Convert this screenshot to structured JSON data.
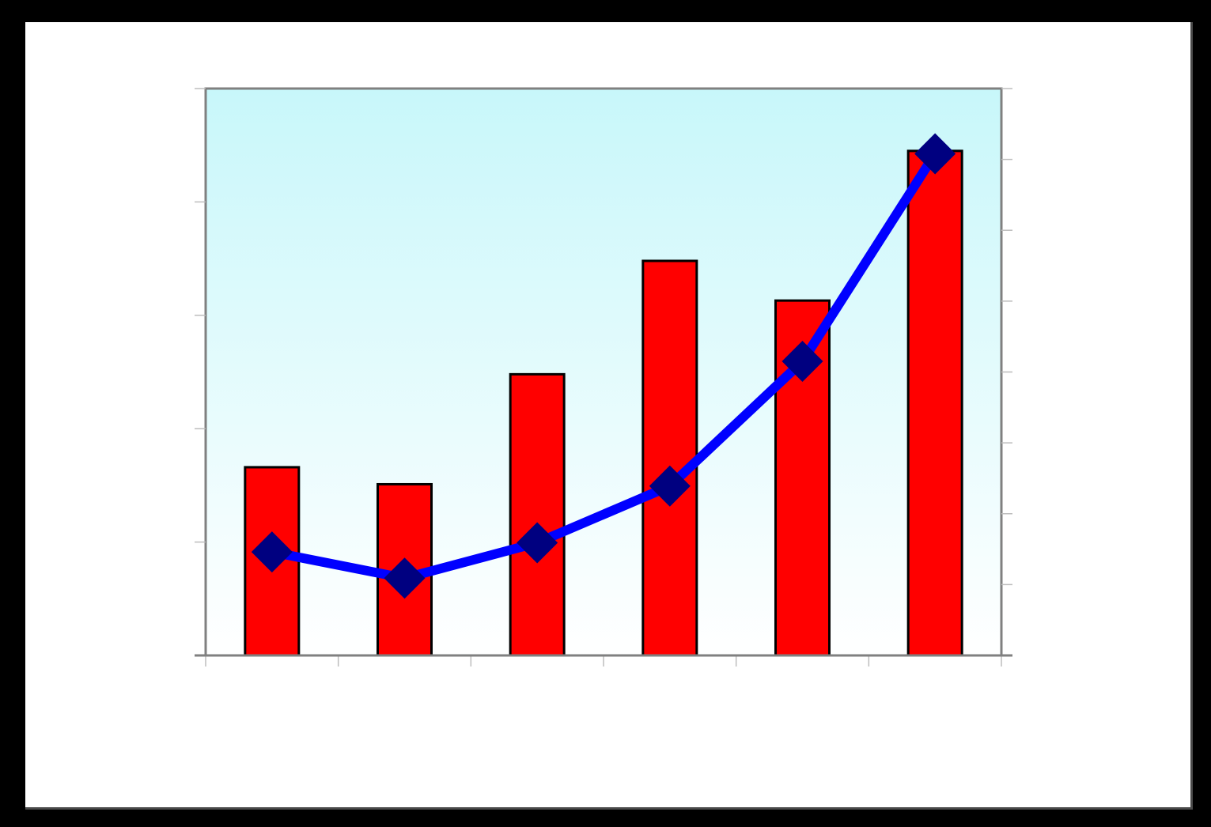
{
  "colors": {
    "page_background": "#000000",
    "frame_background": "#ffffff",
    "plot_gradient_top": "#c8f7fa",
    "plot_gradient_bottom": "#ffffff",
    "plot_border": "#808080",
    "bar_fill": "#ff0000",
    "bar_stroke": "#000000",
    "line_color": "#0000ff",
    "marker_color": "#000080"
  },
  "chart_data": {
    "type": "bar",
    "title": "",
    "xlabel": "",
    "ylabel": "",
    "categories": [
      "",
      "",
      "",
      "",
      "",
      ""
    ],
    "tick_labels_visible": false,
    "left_axis": {
      "ticks": 5,
      "range": [
        0,
        5
      ]
    },
    "right_axis": {
      "ticks": 8,
      "range": [
        0,
        8
      ]
    },
    "grid": false,
    "legend": "none",
    "series": [
      {
        "type": "bar",
        "axis": "left",
        "values": [
          1.66,
          1.51,
          2.48,
          3.48,
          3.13,
          4.45
        ]
      },
      {
        "type": "line",
        "axis": "right",
        "marker": "diamond-icon",
        "values": [
          1.46,
          1.09,
          1.59,
          2.39,
          4.15,
          7.08
        ]
      }
    ]
  }
}
